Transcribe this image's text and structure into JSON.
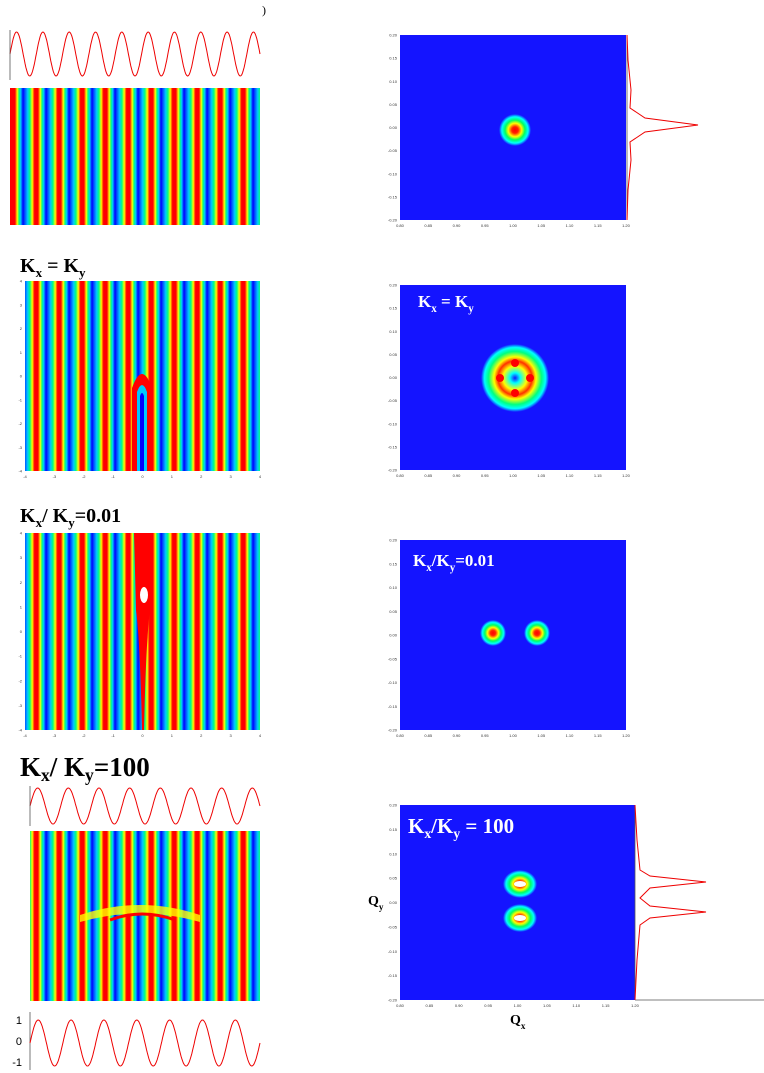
{
  "top_mark": ")",
  "rows": [
    {
      "right": {
        "yticks": [
          "0.20",
          "0.15",
          "0.10",
          "0.05",
          "0.00",
          "-0.05",
          "-0.10",
          "-0.15",
          "-0.20"
        ],
        "xticks": [
          "0.80",
          "0.85",
          "0.90",
          "0.95",
          "1.00",
          "1.05",
          "1.10",
          "1.15",
          "1.20"
        ]
      }
    },
    {
      "label": [
        "K",
        "x",
        " = K",
        "y"
      ],
      "left": {
        "yticks": [
          "4",
          "3",
          "2",
          "1",
          "0",
          "-1",
          "-2",
          "-3",
          "-4"
        ],
        "xticks": [
          "-4",
          "-3",
          "-2",
          "-1",
          "0",
          "1",
          "2",
          "3",
          "4"
        ]
      },
      "right": {
        "label": [
          "K",
          "x",
          " = K",
          "y"
        ],
        "yticks": [
          "0.20",
          "0.15",
          "0.10",
          "0.05",
          "0.00",
          "-0.05",
          "-0.10",
          "-0.15",
          "-0.20"
        ],
        "xticks": [
          "0.80",
          "0.85",
          "0.90",
          "0.95",
          "1.00",
          "1.05",
          "1.10",
          "1.15",
          "1.20"
        ]
      }
    },
    {
      "label": [
        "K",
        "x",
        "/ K",
        "y",
        "=0.01"
      ],
      "left": {
        "yticks": [
          "4",
          "3",
          "2",
          "1",
          "0",
          "-1",
          "-2",
          "-3",
          "-4"
        ],
        "xticks": [
          "-4",
          "-3",
          "-2",
          "-1",
          "0",
          "1",
          "2",
          "3",
          "4"
        ]
      },
      "right": {
        "label": [
          "K",
          "x",
          "/K",
          "y",
          "=0.01"
        ],
        "yticks": [
          "0.20",
          "0.15",
          "0.10",
          "0.05",
          "0.00",
          "-0.05",
          "-0.10",
          "-0.15",
          "-0.20"
        ],
        "xticks": [
          "0.80",
          "0.85",
          "0.90",
          "0.95",
          "1.00",
          "1.05",
          "1.10",
          "1.15",
          "1.20"
        ]
      }
    },
    {
      "label": [
        "K",
        "x",
        "/ K",
        "y",
        "=100"
      ],
      "left": {
        "sine_yticks": [
          "1",
          "0",
          "-1"
        ]
      },
      "right": {
        "label": [
          "K",
          "x",
          "/K",
          "y",
          " = 100"
        ],
        "yticks": [
          "0.20",
          "0.15",
          "0.10",
          "0.05",
          "0.00",
          "-0.05",
          "-0.10",
          "-0.15",
          "-0.20"
        ],
        "xticks": [
          "0.80",
          "0.85",
          "0.90",
          "0.95",
          "1.00",
          "1.05",
          "1.10",
          "1.15",
          "1.20"
        ],
        "ylabel": [
          "Q",
          "y"
        ],
        "xlabel": [
          "Q",
          "x"
        ]
      }
    }
  ]
}
